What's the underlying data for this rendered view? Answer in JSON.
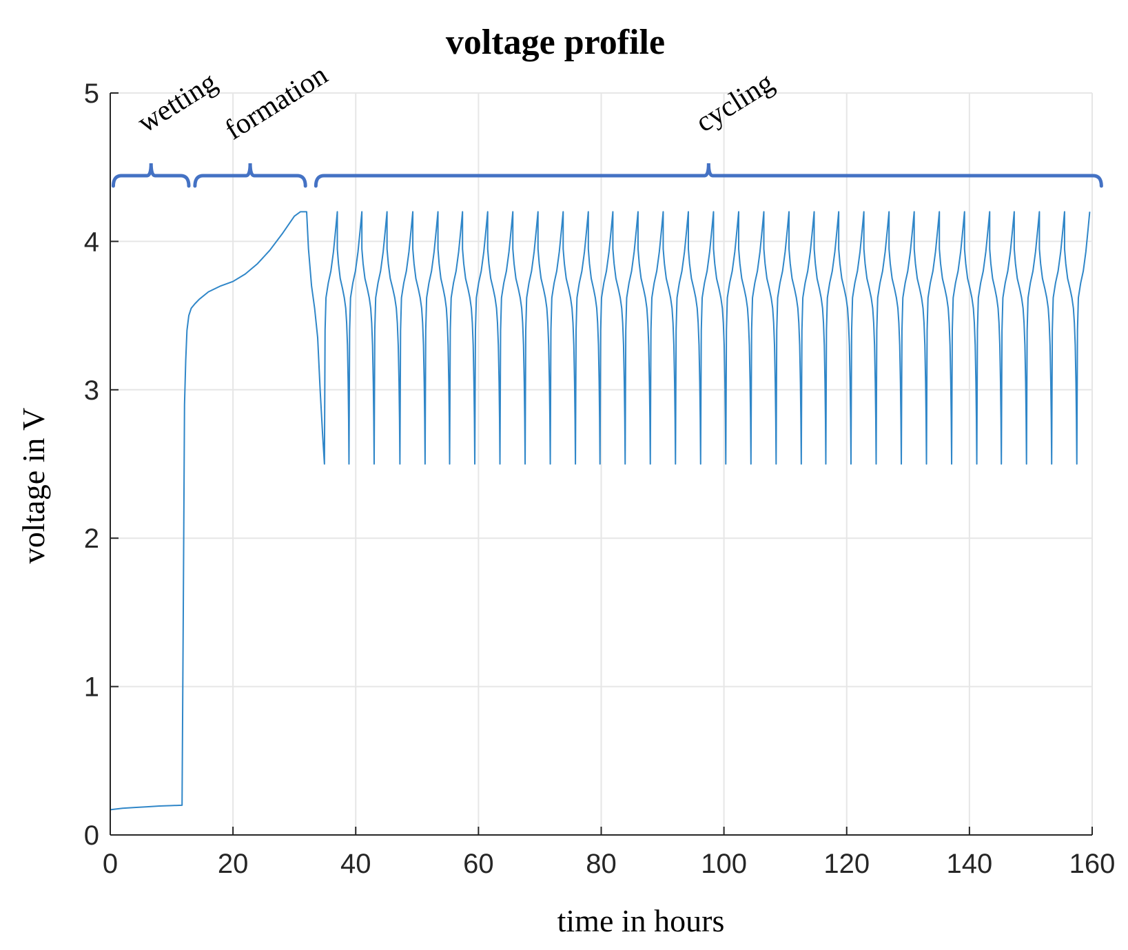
{
  "chart_data": {
    "type": "line",
    "title": "voltage profile",
    "xlabel": "time in hours",
    "ylabel": "voltage in V",
    "xlim": [
      0,
      160
    ],
    "ylim": [
      0,
      5
    ],
    "xticks": [
      0,
      20,
      40,
      60,
      80,
      100,
      120,
      140,
      160
    ],
    "yticks": [
      0,
      1,
      2,
      3,
      4,
      5
    ],
    "grid": true,
    "line_color": "#2f86c8",
    "bracket_color": "#4472c4",
    "phases": [
      {
        "label": "wetting",
        "start": 0.5,
        "end": 12.8
      },
      {
        "label": "formation",
        "start": 13.8,
        "end": 31.8
      },
      {
        "label": "cycling",
        "start": 33.5,
        "end": 161.5
      }
    ],
    "series": [
      {
        "name": "voltage",
        "segments": [
          {
            "x": [
              0,
              2,
              4,
              6,
              8,
              10,
              11.6,
              11.7
            ],
            "y": [
              0.17,
              0.18,
              0.185,
              0.19,
              0.195,
              0.198,
              0.2,
              0.2
            ]
          },
          {
            "x": [
              11.7,
              11.9,
              12.1,
              12.3,
              12.5,
              12.8,
              13.2,
              13.8,
              14.5,
              16,
              18,
              20,
              22,
              24,
              26,
              28,
              30,
              31,
              32
            ],
            "y": [
              0.2,
              1.5,
              2.9,
              3.2,
              3.4,
              3.5,
              3.55,
              3.58,
              3.61,
              3.66,
              3.7,
              3.73,
              3.78,
              3.85,
              3.94,
              4.05,
              4.17,
              4.2,
              4.2
            ]
          },
          {
            "x": [
              32,
              32.3,
              32.8,
              33.3,
              33.8,
              34.2,
              34.6,
              34.9
            ],
            "y": [
              4.2,
              3.95,
              3.7,
              3.55,
              3.35,
              3.0,
              2.7,
              2.5
            ]
          }
        ],
        "cycles": {
          "discharge_end_times": [
            34.9,
            38.9,
            43.0,
            47.2,
            51.3,
            55.3,
            59.4,
            63.5,
            67.6,
            71.7,
            75.8,
            79.8,
            83.9,
            88.0,
            92.1,
            96.2,
            100.3,
            104.4,
            108.5,
            112.6,
            116.6,
            120.7,
            124.8,
            128.9,
            133.0,
            137.1,
            141.2,
            145.2,
            149.3,
            153.4,
            157.5
          ],
          "charge_duration_h": 2.1,
          "v_min": 2.5,
          "v_max": 4.2,
          "final_time": 159.4
        }
      }
    ]
  }
}
